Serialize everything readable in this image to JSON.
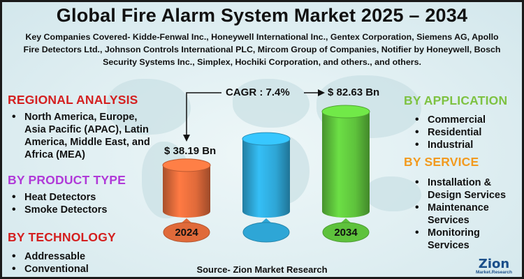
{
  "title": "Global Fire Alarm System Market 2025 – 2034",
  "subtitle": "Key Companies Covered- Kidde-Fenwal Inc., Honeywell International Inc., Gentex Corporation, Siemens AG, Apollo Fire Detectors Ltd., Johnson Controls International PLC, Mircom Group of Companies, Notifier by Honeywell, Bosch Security Systems Inc., Simplex, Hochiki Corporation, and others., and others.",
  "colors": {
    "regional": "#d42020",
    "product": "#b03ad8",
    "technology": "#d42020",
    "application": "#7ec242",
    "service": "#f29a1f",
    "bar_2024": "#e06a3a",
    "bar_mid": "#2ea6d6",
    "bar_2034": "#5ec23c"
  },
  "regional": {
    "heading": "REGIONAL ANALYSIS",
    "items": [
      "North America, Europe, Asia Pacific (APAC), Latin America, Middle East, and Africa (MEA)"
    ]
  },
  "product": {
    "heading": "BY PRODUCT TYPE",
    "items": [
      "Heat Detectors",
      "Smoke Detectors"
    ]
  },
  "technology": {
    "heading": "BY TECHNOLOGY",
    "items": [
      "Addressable",
      "Conventional"
    ]
  },
  "application": {
    "heading": "BY APPLICATION",
    "items": [
      "Commercial",
      "Residential",
      "Industrial"
    ]
  },
  "service": {
    "heading": "BY SERVICE",
    "items": [
      "Installation & Design Services",
      "Maintenance Services",
      "Monitoring Services"
    ]
  },
  "chart_data": {
    "type": "bar",
    "categories": [
      "2024",
      "",
      "2034"
    ],
    "values": [
      38.19,
      60,
      82.63
    ],
    "data_labels": [
      "$ 38.19 Bn",
      "",
      "$ 82.63 Bn"
    ],
    "cagr_label": "CAGR : 7.4%",
    "unit": "USD Billion"
  },
  "source": "Source- Zion Market Research",
  "logo": {
    "main": "Zion",
    "sub": "Market.Research"
  }
}
